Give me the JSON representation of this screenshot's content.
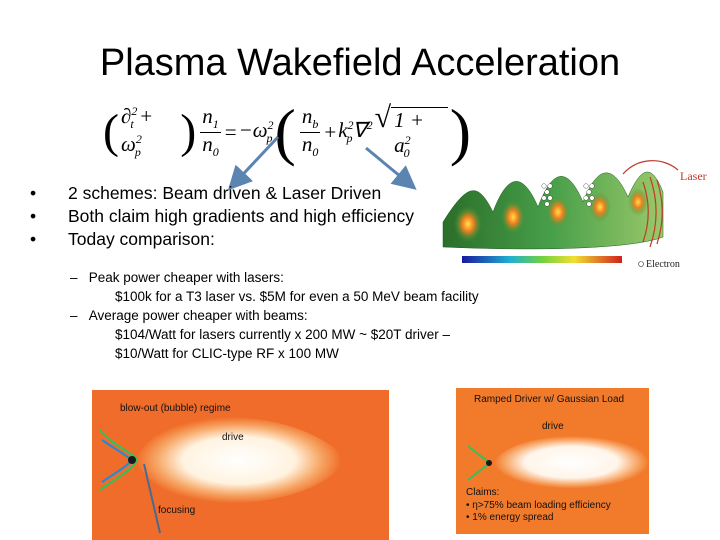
{
  "slide": {
    "title": "Plasma Wakefield Acceleration",
    "bullets": [
      "2 schemes: Beam driven   &   Laser Driven",
      "Both claim high gradients and high efficiency",
      "Today comparison:"
    ],
    "sub_items": [
      {
        "text": "Peak power cheaper with lasers:",
        "dash": true
      },
      {
        "text": "$100k for a T3 laser vs. $5M for even a 50 MeV beam facility",
        "dash": false
      },
      {
        "text": "Average power cheaper with beams:",
        "dash": true
      },
      {
        "text": "$104/Watt for lasers currently x 200 MW ~ $20T driver –",
        "dash": false
      },
      {
        "text": "$10/Watt for CLIC-type RF x 100 MW",
        "dash": false
      }
    ]
  },
  "figures": {
    "wake": {
      "laser_label": "Laser",
      "electron_label": "Electron"
    },
    "blowout": {
      "regime_label": "blow-out  (bubble) regime",
      "drive_label": "drive",
      "focusing_label": "focusing"
    },
    "ramped": {
      "title": "Ramped Driver w/ Gaussian Load",
      "drive_label": "drive",
      "claims_title": "Claims:",
      "claims": [
        "• η>75% beam loading efficiency",
        "• 1% energy spread"
      ]
    }
  },
  "colors": {
    "accent_arrow": "#5b84b1",
    "laser_red": "#c0392b",
    "plasma_orange": "#f0702a"
  }
}
